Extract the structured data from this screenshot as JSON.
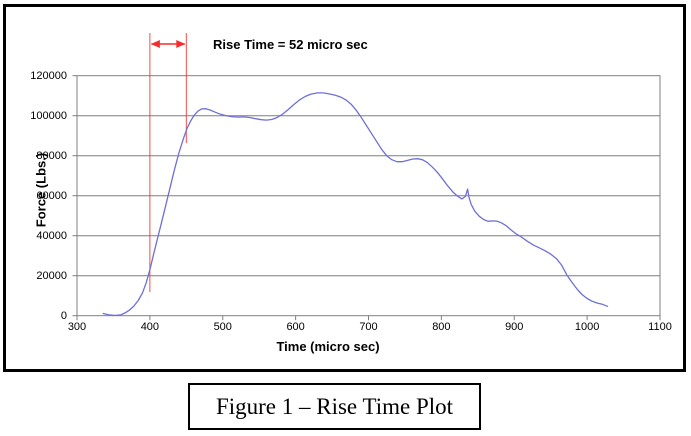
{
  "figure": {
    "caption": "Figure 1 – Rise Time Plot"
  },
  "chart_data": {
    "type": "line",
    "title": "",
    "xlabel": "Time (micro sec)",
    "ylabel": "Force (Lbs.)",
    "xlim": [
      300,
      1100
    ],
    "ylim": [
      0,
      120000
    ],
    "x_ticks": [
      300,
      400,
      500,
      600,
      700,
      800,
      900,
      1000,
      1100
    ],
    "x_tick_labels": [
      "300",
      "400",
      "500",
      "600",
      "700",
      "800",
      "900",
      "1000",
      "1100"
    ],
    "y_ticks": [
      0,
      20000,
      40000,
      60000,
      80000,
      100000,
      120000
    ],
    "y_tick_labels": [
      "0",
      "20000",
      "40000",
      "60000",
      "80000",
      "100000",
      "120000"
    ],
    "grid": "horizontal-only",
    "legend": "none",
    "line_color": "#6e70d6",
    "grid_color": "#7f7f7f",
    "rise_annotation": {
      "label": "Rise Time = 52 micro sec",
      "marker_t_start": 400,
      "marker_t_end": 450,
      "rise_time_microsec": 52,
      "color": "#f62d2d"
    },
    "series": [
      {
        "name": "Force",
        "points": [
          [
            336,
            1100
          ],
          [
            344,
            400
          ],
          [
            352,
            150
          ],
          [
            360,
            400
          ],
          [
            366,
            1400
          ],
          [
            372,
            2800
          ],
          [
            378,
            4800
          ],
          [
            384,
            7600
          ],
          [
            390,
            11500
          ],
          [
            395,
            16500
          ],
          [
            400,
            23000
          ],
          [
            405,
            30500
          ],
          [
            410,
            38000
          ],
          [
            416,
            46500
          ],
          [
            422,
            55500
          ],
          [
            428,
            64500
          ],
          [
            434,
            73500
          ],
          [
            440,
            81500
          ],
          [
            446,
            88500
          ],
          [
            451,
            93600
          ],
          [
            456,
            97400
          ],
          [
            461,
            100300
          ],
          [
            466,
            102300
          ],
          [
            471,
            103400
          ],
          [
            477,
            103500
          ],
          [
            483,
            102800
          ],
          [
            490,
            101700
          ],
          [
            497,
            100700
          ],
          [
            505,
            100000
          ],
          [
            513,
            99500
          ],
          [
            521,
            99300
          ],
          [
            529,
            99400
          ],
          [
            537,
            99100
          ],
          [
            545,
            98500
          ],
          [
            553,
            98000
          ],
          [
            560,
            97800
          ],
          [
            567,
            98100
          ],
          [
            574,
            99000
          ],
          [
            581,
            100500
          ],
          [
            589,
            102800
          ],
          [
            597,
            105400
          ],
          [
            605,
            107800
          ],
          [
            613,
            109600
          ],
          [
            621,
            110800
          ],
          [
            630,
            111400
          ],
          [
            638,
            111400
          ],
          [
            646,
            110900
          ],
          [
            654,
            110300
          ],
          [
            662,
            109300
          ],
          [
            669,
            107900
          ],
          [
            676,
            105800
          ],
          [
            683,
            102800
          ],
          [
            690,
            99200
          ],
          [
            697,
            95200
          ],
          [
            704,
            91200
          ],
          [
            711,
            87200
          ],
          [
            718,
            83200
          ],
          [
            725,
            80000
          ],
          [
            732,
            78000
          ],
          [
            739,
            77000
          ],
          [
            746,
            77000
          ],
          [
            753,
            77600
          ],
          [
            760,
            78300
          ],
          [
            767,
            78500
          ],
          [
            774,
            78000
          ],
          [
            781,
            76500
          ],
          [
            788,
            74200
          ],
          [
            795,
            71500
          ],
          [
            802,
            68200
          ],
          [
            809,
            64800
          ],
          [
            816,
            61800
          ],
          [
            822,
            59800
          ],
          [
            828,
            58400
          ],
          [
            833,
            59600
          ],
          [
            836,
            63300
          ],
          [
            838,
            59000
          ],
          [
            841,
            55500
          ],
          [
            846,
            52200
          ],
          [
            852,
            49700
          ],
          [
            858,
            48100
          ],
          [
            864,
            47200
          ],
          [
            870,
            47400
          ],
          [
            876,
            47300
          ],
          [
            882,
            46500
          ],
          [
            889,
            45000
          ],
          [
            896,
            42800
          ],
          [
            903,
            40800
          ],
          [
            910,
            39300
          ],
          [
            918,
            37200
          ],
          [
            926,
            35400
          ],
          [
            934,
            34000
          ],
          [
            942,
            32500
          ],
          [
            950,
            30800
          ],
          [
            958,
            28500
          ],
          [
            965,
            25300
          ],
          [
            972,
            20500
          ],
          [
            979,
            16800
          ],
          [
            986,
            13400
          ],
          [
            993,
            10600
          ],
          [
            1000,
            8600
          ],
          [
            1007,
            7200
          ],
          [
            1014,
            6300
          ],
          [
            1021,
            5700
          ],
          [
            1028,
            4700
          ]
        ]
      }
    ]
  }
}
